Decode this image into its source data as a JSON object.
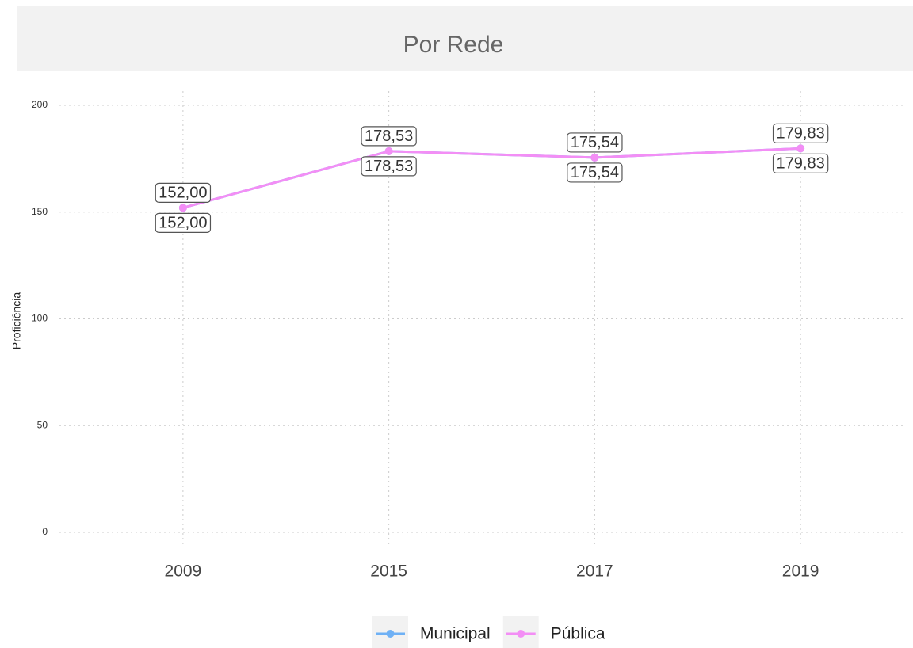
{
  "chart_data": {
    "type": "line",
    "title": "Por Rede",
    "y_label": "Proficiência",
    "categories": [
      "2009",
      "2015",
      "2017",
      "2019"
    ],
    "series": [
      {
        "name": "Municipal",
        "color": "#6fb1f5",
        "values": [
          152.0,
          178.53,
          175.54,
          179.83
        ],
        "value_labels": [
          "152,00",
          "178,53",
          "175,54",
          "179,83"
        ]
      },
      {
        "name": "Pública",
        "color": "#f38ef5",
        "values": [
          152.0,
          178.53,
          175.54,
          179.83
        ],
        "value_labels": [
          "152,00",
          "178,53",
          "175,54",
          "179,83"
        ]
      }
    ],
    "ylim": [
      0,
      200
    ],
    "yticks": [
      0,
      50,
      100,
      150,
      200
    ],
    "grid": true,
    "legend": "bottom"
  }
}
